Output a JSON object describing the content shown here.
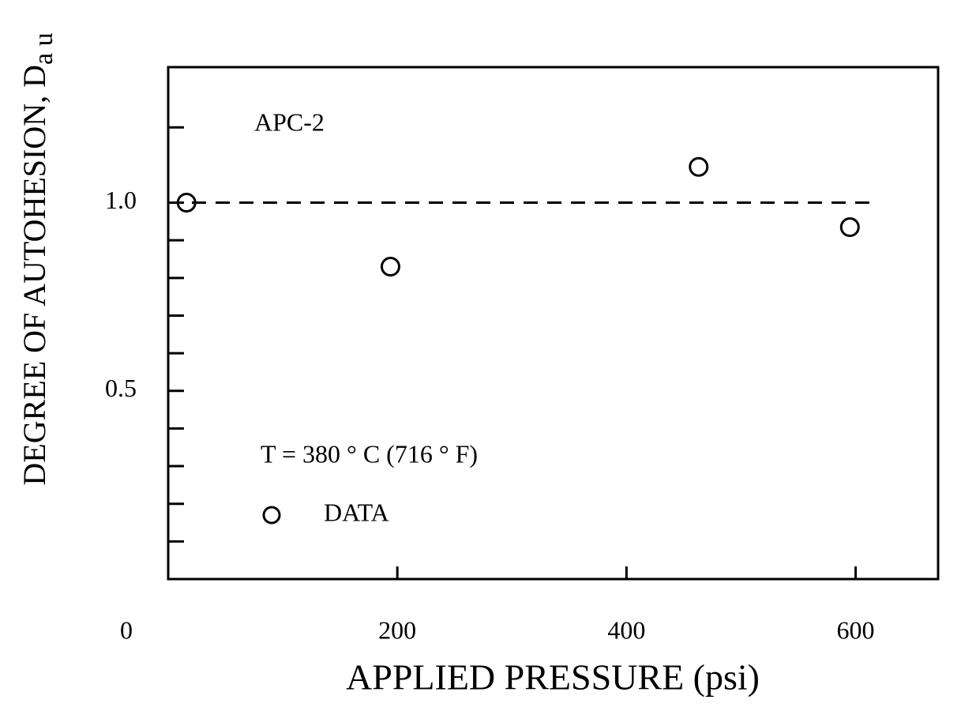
{
  "chart_data": {
    "type": "scatter",
    "xlabel": "APPLIED PRESSURE (psi)",
    "ylabel": "DEGREE OF AUTOHESION, D",
    "ylabel_subscript": "a u",
    "annotations": [
      "APC-2",
      "T = 380 ° C (716 ° F)"
    ],
    "series": [
      {
        "name": "DATA",
        "color": "#000000",
        "x": [
          16,
          194,
          463,
          595
        ],
        "values": [
          1.0,
          0.83,
          1.095,
          0.935
        ]
      }
    ],
    "reference_line": {
      "x": [
        0,
        612
      ],
      "values": [
        1.0,
        1.0
      ]
    },
    "xlim": [
      0,
      672
    ],
    "xticks": [
      0,
      200,
      400,
      600
    ],
    "ylim": [
      0,
      1.36
    ],
    "yticks": [
      {
        "value": 0.5,
        "label": "0.5"
      },
      {
        "value": 1,
        "label": "1.0"
      }
    ],
    "yminor_ticks": [
      0.1,
      0.2,
      0.3,
      0.4,
      0.6,
      0.7,
      0.8,
      0.9,
      1.2
    ],
    "grid": false
  }
}
